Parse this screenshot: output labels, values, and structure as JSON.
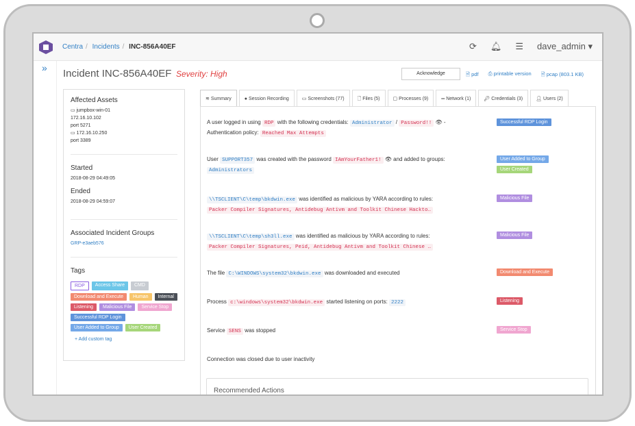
{
  "breadcrumb": [
    "Centra",
    "Incidents",
    "INC-856A40EF"
  ],
  "topbar": {
    "icons": [
      "refresh-icon",
      "bell-icon",
      "sliders-icon"
    ],
    "user": "dave_admin"
  },
  "sidebar_toggle": "»",
  "header": {
    "title": "Incident INC-856A40EF",
    "severity": "Severity: High",
    "acknowledge": "Acknowledge",
    "pdf": "pdf",
    "printable": "printable version",
    "pcap": "pcap (803.1 KB)"
  },
  "panel": {
    "assets_title": "Affected Assets",
    "asset1_name": "jumpbox-win-01",
    "asset1_ip": "172.16.10.102",
    "asset1_port": "port 5271",
    "asset2_name": "172.16.10.250",
    "asset2_port": "port 3389",
    "started_label": "Started",
    "started": "2018-08-29 04:49:05",
    "ended_label": "Ended",
    "ended": "2018-08-29 04:59:07",
    "groups_title": "Associated Incident Groups",
    "group": "GRP-e3aeb576",
    "tags_title": "Tags",
    "tags": [
      {
        "label": "RDP",
        "color": "#8a5ce0"
      },
      {
        "label": "Access Share",
        "color": "#6cc6e8"
      },
      {
        "label": "CMD",
        "color": "#c8ccd2"
      },
      {
        "label": "Download and Execute",
        "color": "#f28a70"
      },
      {
        "label": "Human",
        "color": "#f7c56a"
      },
      {
        "label": "Internal",
        "color": "#4a4f57"
      },
      {
        "label": "Listening",
        "color": "#dc5a68"
      },
      {
        "label": "Malicious File",
        "color": "#b08ee0"
      },
      {
        "label": "Service Stop",
        "color": "#f0a6d0"
      },
      {
        "label": "Successful RDP Login",
        "color": "#5e93db"
      },
      {
        "label": "User Added to Group",
        "color": "#74a8e8"
      },
      {
        "label": "User Created",
        "color": "#a6d67a"
      }
    ],
    "add_tag": "+ Add custom tag"
  },
  "tabs": [
    "Summary",
    "Session Recording",
    "Screenshots (77)",
    "Files (5)",
    "Processes (9)",
    "Network (1)",
    "Credentials (3)",
    "Users (2)"
  ],
  "events": {
    "e1": {
      "a": "A user logged in using",
      "b": "RDP",
      "c": "with the following credentials:",
      "d": "Administrator",
      "e": "/",
      "f": "Password!!",
      "g": "👁 -",
      "h": "Authentication policy:",
      "i": "Reached Max Attempts",
      "tag": "Successful RDP Login"
    },
    "e2": {
      "a": "User",
      "b": "SUPPORT357",
      "c": "was created with the password",
      "d": "IAmYourFather1!",
      "e": "👁 and added to groups:",
      "f": "Administrators",
      "tag1": "User Added to Group",
      "tag2": "User Created"
    },
    "e3": {
      "a": "\\\\TSCLIENT\\C\\temp\\bkdwin.exe",
      "b": "was identified as malicious by YARA according to rules:",
      "c": "Packer Compiler Signatures, Antidebug Antivm and Toolkit Chinese Hackto…",
      "tag": "Malicious File"
    },
    "e4": {
      "a": "\\\\TSCLIENT\\C\\temp\\sh3ll.exe",
      "b": "was identified as malicious by YARA according to rules:",
      "c": "Packer Compiler Signatures, Peid, Antidebug Antivm and Toolkit Chinese …",
      "tag": "Malicious File"
    },
    "e5": {
      "a": "The file",
      "b": "C:\\WINDOWS\\system32\\bkdwin.exe",
      "c": "was downloaded and executed",
      "tag": "Download and Execute"
    },
    "e6": {
      "a": "Process",
      "b": "c:\\windows\\system32\\bkdwin.exe",
      "c": "started listening on ports:",
      "d": "2222",
      "tag": "Listening"
    },
    "e7": {
      "a": "Service",
      "b": "SENS",
      "c": "was stopped",
      "tag": "Service Stop"
    },
    "e8": {
      "a": "Connection was closed due to user inactivity"
    }
  },
  "recommended": "Recommended Actions"
}
